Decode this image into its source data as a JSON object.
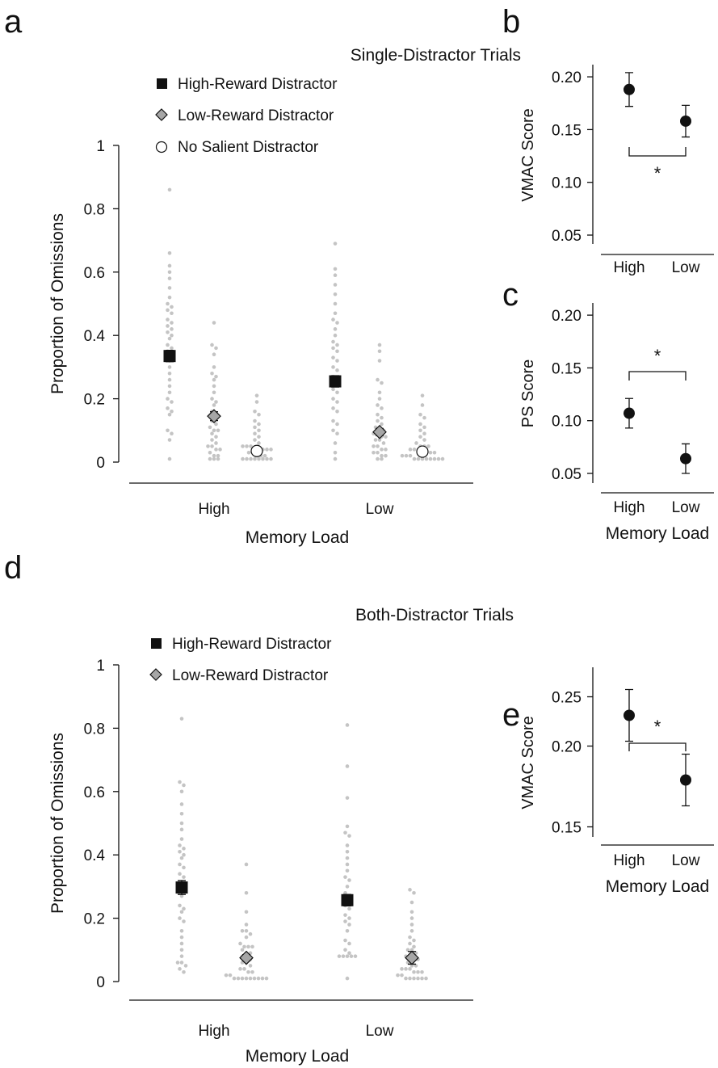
{
  "chart_data": [
    {
      "panel": "a",
      "type": "scatter",
      "title": "Single-Distractor Trials",
      "xlabel": "Memory Load",
      "ylabel": "Proportion of Omissions",
      "categories": [
        "High",
        "Low"
      ],
      "ylim": [
        0,
        1
      ],
      "yticks": [
        "0",
        "0.2",
        "0.4",
        "0.6",
        "0.8",
        "1"
      ],
      "legend_position": "top-left",
      "series": [
        {
          "name": "High-Reward Distractor",
          "marker": "square",
          "fill": "#111111",
          "means": [
            0.335,
            0.255
          ],
          "sem": [
            0.018,
            0.018
          ],
          "points": [
            [
              0.86,
              0.66,
              0.62,
              0.6,
              0.58,
              0.55,
              0.52,
              0.5,
              0.49,
              0.48,
              0.47,
              0.45,
              0.44,
              0.43,
              0.42,
              0.41,
              0.4,
              0.39,
              0.37,
              0.36,
              0.35,
              0.34,
              0.32,
              0.3,
              0.28,
              0.26,
              0.24,
              0.22,
              0.2,
              0.19,
              0.17,
              0.16,
              0.15,
              0.1,
              0.09,
              0.07,
              0.01
            ],
            [
              0.69,
              0.61,
              0.59,
              0.56,
              0.53,
              0.5,
              0.47,
              0.45,
              0.44,
              0.42,
              0.4,
              0.38,
              0.37,
              0.36,
              0.35,
              0.33,
              0.32,
              0.3,
              0.29,
              0.27,
              0.26,
              0.25,
              0.23,
              0.22,
              0.2,
              0.19,
              0.17,
              0.16,
              0.13,
              0.12,
              0.1,
              0.09,
              0.06,
              0.03,
              0.01
            ]
          ]
        },
        {
          "name": "Low-Reward Distractor",
          "marker": "diamond",
          "fill": "#a6a6a6",
          "means": [
            0.145,
            0.095
          ],
          "sem": [
            0.014,
            0.011
          ],
          "points": [
            [
              0.44,
              0.37,
              0.36,
              0.34,
              0.3,
              0.28,
              0.27,
              0.26,
              0.24,
              0.22,
              0.2,
              0.19,
              0.18,
              0.16,
              0.15,
              0.13,
              0.12,
              0.11,
              0.1,
              0.1,
              0.09,
              0.08,
              0.07,
              0.06,
              0.05,
              0.05,
              0.04,
              0.04,
              0.03,
              0.02,
              0.02,
              0.01,
              0.01,
              0.01
            ],
            [
              0.37,
              0.35,
              0.32,
              0.26,
              0.25,
              0.22,
              0.2,
              0.18,
              0.17,
              0.15,
              0.14,
              0.13,
              0.12,
              0.11,
              0.1,
              0.1,
              0.09,
              0.09,
              0.08,
              0.08,
              0.07,
              0.07,
              0.06,
              0.05,
              0.05,
              0.04,
              0.04,
              0.03,
              0.03,
              0.02,
              0.02,
              0.01,
              0.01
            ]
          ]
        },
        {
          "name": "No Salient Distractor",
          "marker": "circle",
          "fill": "#ffffff",
          "means": [
            0.035,
            0.033
          ],
          "sem": [
            0.006,
            0.006
          ],
          "points": [
            [
              0.21,
              0.19,
              0.16,
              0.15,
              0.13,
              0.12,
              0.11,
              0.1,
              0.09,
              0.08,
              0.07,
              0.06,
              0.05,
              0.05,
              0.05,
              0.04,
              0.04,
              0.04,
              0.04,
              0.04,
              0.03,
              0.03,
              0.02,
              0.02,
              0.02,
              0.01,
              0.01,
              0.01,
              0.01,
              0.01,
              0.01,
              0.01,
              0.01
            ],
            [
              0.21,
              0.18,
              0.15,
              0.14,
              0.12,
              0.11,
              0.1,
              0.09,
              0.08,
              0.07,
              0.06,
              0.05,
              0.05,
              0.05,
              0.04,
              0.04,
              0.04,
              0.04,
              0.04,
              0.03,
              0.03,
              0.02,
              0.02,
              0.02,
              0.01,
              0.01,
              0.01,
              0.01,
              0.01,
              0.01,
              0.01,
              0.01
            ]
          ]
        }
      ]
    },
    {
      "panel": "b",
      "type": "scatter",
      "ylabel": "VMAC Score",
      "categories": [
        "High",
        "Low"
      ],
      "ylim": [
        0.04,
        0.21
      ],
      "yticks": [
        "0.05",
        "0.10",
        "0.15",
        "0.20"
      ],
      "values": [
        0.188,
        0.158
      ],
      "sem": [
        0.016,
        0.015
      ],
      "significance": {
        "label": "*",
        "placement": "below"
      }
    },
    {
      "panel": "c",
      "type": "scatter",
      "xlabel": "Memory Load",
      "ylabel": "PS Score",
      "categories": [
        "High",
        "Low"
      ],
      "ylim": [
        0.04,
        0.21
      ],
      "yticks": [
        "0.05",
        "0.10",
        "0.15",
        "0.20"
      ],
      "values": [
        0.107,
        0.064
      ],
      "sem": [
        0.014,
        0.014
      ],
      "significance": {
        "label": "*",
        "placement": "above"
      }
    },
    {
      "panel": "d",
      "type": "scatter",
      "title": "Both-Distractor Trials",
      "xlabel": "Memory Load",
      "ylabel": "Proportion of Omissions",
      "categories": [
        "High",
        "Low"
      ],
      "ylim": [
        0,
        1
      ],
      "yticks": [
        "0",
        "0.2",
        "0.4",
        "0.6",
        "0.8",
        "1"
      ],
      "legend_position": "top-left",
      "series": [
        {
          "name": "High-Reward Distractor",
          "marker": "square",
          "fill": "#111111",
          "means": [
            0.297,
            0.257
          ],
          "sem": [
            0.022,
            0.018
          ],
          "points": [
            [
              0.83,
              0.63,
              0.62,
              0.6,
              0.56,
              0.53,
              0.5,
              0.48,
              0.45,
              0.43,
              0.42,
              0.41,
              0.4,
              0.39,
              0.37,
              0.36,
              0.34,
              0.33,
              0.3,
              0.29,
              0.27,
              0.24,
              0.23,
              0.22,
              0.2,
              0.19,
              0.16,
              0.14,
              0.12,
              0.1,
              0.08,
              0.06,
              0.06,
              0.05,
              0.04,
              0.03
            ],
            [
              0.81,
              0.68,
              0.58,
              0.49,
              0.47,
              0.46,
              0.43,
              0.41,
              0.39,
              0.37,
              0.35,
              0.33,
              0.32,
              0.3,
              0.28,
              0.27,
              0.26,
              0.25,
              0.24,
              0.23,
              0.21,
              0.2,
              0.19,
              0.18,
              0.16,
              0.13,
              0.12,
              0.1,
              0.09,
              0.08,
              0.08,
              0.08,
              0.08,
              0.08,
              0.01
            ]
          ]
        },
        {
          "name": "Low-Reward Distractor",
          "marker": "diamond",
          "fill": "#a6a6a6",
          "means": [
            0.075,
            0.075
          ],
          "sem": [
            0.01,
            0.02
          ],
          "points": [
            [
              0.37,
              0.28,
              0.22,
              0.18,
              0.16,
              0.16,
              0.15,
              0.14,
              0.12,
              0.11,
              0.11,
              0.11,
              0.1,
              0.09,
              0.09,
              0.08,
              0.08,
              0.07,
              0.06,
              0.06,
              0.05,
              0.04,
              0.04,
              0.03,
              0.03,
              0.02,
              0.02,
              0.01,
              0.01,
              0.01,
              0.01,
              0.01,
              0.01,
              0.01,
              0.01,
              0.01
            ],
            [
              0.29,
              0.28,
              0.25,
              0.22,
              0.2,
              0.18,
              0.16,
              0.14,
              0.13,
              0.12,
              0.11,
              0.1,
              0.1,
              0.09,
              0.08,
              0.08,
              0.07,
              0.07,
              0.06,
              0.05,
              0.05,
              0.04,
              0.04,
              0.04,
              0.03,
              0.03,
              0.03,
              0.02,
              0.02,
              0.01,
              0.01,
              0.01,
              0.01,
              0.01,
              0.01
            ]
          ]
        }
      ]
    },
    {
      "panel": "e",
      "type": "scatter",
      "xlabel": "Memory Load",
      "ylabel": "VMAC Score",
      "categories": [
        "High",
        "Low"
      ],
      "ylim": [
        0.145,
        0.26
      ],
      "yticks": [
        "0.15",
        "0.20",
        "0.25"
      ],
      "values": [
        0.219,
        0.179
      ],
      "sem": [
        0.016,
        0.016
      ],
      "significance": {
        "label": "*",
        "placement": "above"
      }
    }
  ],
  "panel_labels": [
    "a",
    "b",
    "c",
    "d",
    "e"
  ],
  "colors": {
    "dots": "#c4c4c4",
    "ink": "#111111",
    "low_reward_fill": "#a6a6a6"
  }
}
